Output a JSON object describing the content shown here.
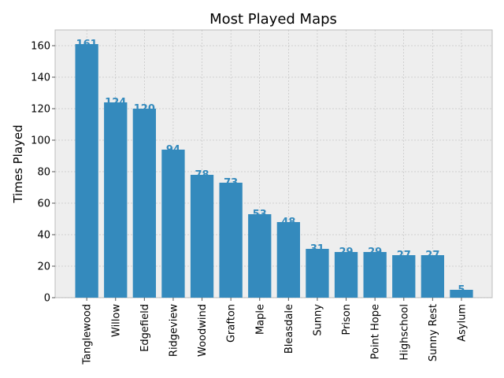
{
  "chart_data": {
    "type": "bar",
    "title": "Most Played Maps",
    "xlabel": "",
    "ylabel": "Times Played",
    "categories": [
      "Tanglewood",
      "Willow",
      "Edgefield",
      "Ridgeview",
      "Woodwind",
      "Grafton",
      "Maple",
      "Bleasdale",
      "Sunny",
      "Prison",
      "Point Hope",
      "Highschool",
      "Sunny Rest",
      "Asylum"
    ],
    "values": [
      161,
      124,
      120,
      94,
      78,
      73,
      53,
      48,
      31,
      29,
      29,
      27,
      27,
      5
    ],
    "ylim": [
      0,
      170
    ],
    "yticks": [
      0,
      20,
      40,
      60,
      80,
      100,
      120,
      140,
      160
    ],
    "grid": true,
    "bar_color": "#348abd",
    "label_color": "#348abd",
    "background_color": "#eeeeee"
  }
}
